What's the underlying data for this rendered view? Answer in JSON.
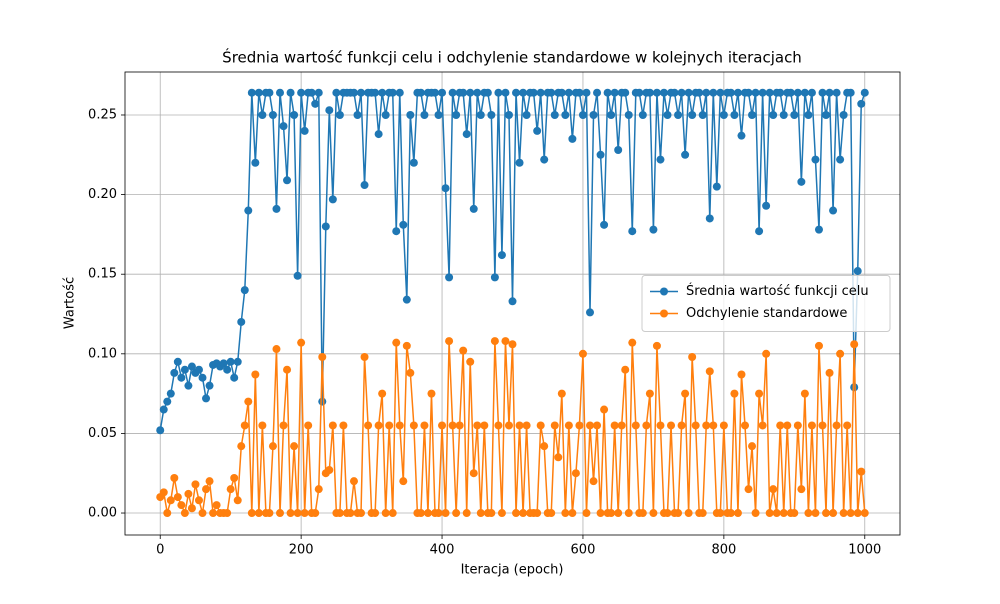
{
  "chart_data": {
    "type": "line",
    "title": "Średnia wartość funkcji celu i odchylenie standardowe w kolejnych iteracjach",
    "xlabel": "Iteracja (epoch)",
    "ylabel": "Wartość",
    "xlim": [
      -50,
      1050
    ],
    "ylim": [
      -0.0138,
      0.277
    ],
    "xticks": [
      0,
      200,
      400,
      600,
      800,
      1000
    ],
    "yticks": [
      {
        "value": 0,
        "label": "0.00"
      },
      {
        "value": 0.05,
        "label": "0.05"
      },
      {
        "value": 0.1,
        "label": "0.10"
      },
      {
        "value": 0.15,
        "label": "0.15"
      },
      {
        "value": 0.2,
        "label": "0.20"
      },
      {
        "value": 0.25,
        "label": "0.25"
      }
    ],
    "grid": true,
    "legend": "center right",
    "x": [
      0,
      5,
      10,
      15,
      20,
      25,
      30,
      35,
      40,
      45,
      50,
      55,
      60,
      65,
      70,
      75,
      80,
      85,
      90,
      95,
      100,
      105,
      110,
      115,
      120,
      125,
      130,
      135,
      140,
      145,
      150,
      155,
      160,
      165,
      170,
      175,
      180,
      185,
      190,
      195,
      200,
      205,
      210,
      215,
      220,
      225,
      230,
      235,
      240,
      245,
      250,
      255,
      260,
      265,
      270,
      275,
      280,
      285,
      290,
      295,
      300,
      305,
      310,
      315,
      320,
      325,
      330,
      335,
      340,
      345,
      350,
      355,
      360,
      365,
      370,
      375,
      380,
      385,
      390,
      395,
      400,
      405,
      410,
      415,
      420,
      425,
      430,
      435,
      440,
      445,
      450,
      455,
      460,
      465,
      470,
      475,
      480,
      485,
      490,
      495,
      500,
      505,
      510,
      515,
      520,
      525,
      530,
      535,
      540,
      545,
      550,
      555,
      560,
      565,
      570,
      575,
      580,
      585,
      590,
      595,
      600,
      605,
      610,
      615,
      620,
      625,
      630,
      635,
      640,
      645,
      650,
      655,
      660,
      665,
      670,
      675,
      680,
      685,
      690,
      695,
      700,
      705,
      710,
      715,
      720,
      725,
      730,
      735,
      740,
      745,
      750,
      755,
      760,
      765,
      770,
      775,
      780,
      785,
      790,
      795,
      800,
      805,
      810,
      815,
      820,
      825,
      830,
      835,
      840,
      845,
      850,
      855,
      860,
      865,
      870,
      875,
      880,
      885,
      890,
      895,
      900,
      905,
      910,
      915,
      920,
      925,
      930,
      935,
      940,
      945,
      950,
      955,
      960,
      965,
      970,
      975,
      980,
      985,
      990,
      995,
      1000
    ],
    "series": [
      {
        "name": "Średnia wartość funkcji celu",
        "color": "#1f77b4",
        "values": [
          0.052,
          0.065,
          0.07,
          0.075,
          0.088,
          0.095,
          0.085,
          0.09,
          0.08,
          0.092,
          0.088,
          0.09,
          0.085,
          0.072,
          0.08,
          0.093,
          0.094,
          0.092,
          0.094,
          0.09,
          0.095,
          0.085,
          0.095,
          0.12,
          0.14,
          0.19,
          0.264,
          0.22,
          0.264,
          0.25,
          0.264,
          0.264,
          0.25,
          0.191,
          0.264,
          0.243,
          0.209,
          0.264,
          0.25,
          0.149,
          0.264,
          0.24,
          0.264,
          0.264,
          0.257,
          0.264,
          0.07,
          0.18,
          0.253,
          0.197,
          0.264,
          0.25,
          0.264,
          0.264,
          0.264,
          0.264,
          0.25,
          0.264,
          0.206,
          0.264,
          0.264,
          0.264,
          0.238,
          0.264,
          0.25,
          0.264,
          0.264,
          0.177,
          0.264,
          0.181,
          0.134,
          0.25,
          0.22,
          0.264,
          0.264,
          0.25,
          0.264,
          0.264,
          0.264,
          0.25,
          0.264,
          0.204,
          0.148,
          0.264,
          0.25,
          0.264,
          0.264,
          0.238,
          0.264,
          0.191,
          0.264,
          0.25,
          0.264,
          0.264,
          0.25,
          0.148,
          0.264,
          0.162,
          0.264,
          0.25,
          0.133,
          0.264,
          0.22,
          0.264,
          0.25,
          0.264,
          0.264,
          0.24,
          0.264,
          0.222,
          0.264,
          0.264,
          0.25,
          0.264,
          0.264,
          0.25,
          0.264,
          0.235,
          0.264,
          0.264,
          0.25,
          0.264,
          0.126,
          0.25,
          0.264,
          0.225,
          0.181,
          0.264,
          0.25,
          0.264,
          0.228,
          0.264,
          0.264,
          0.25,
          0.177,
          0.264,
          0.264,
          0.25,
          0.264,
          0.264,
          0.178,
          0.264,
          0.222,
          0.264,
          0.25,
          0.264,
          0.264,
          0.25,
          0.264,
          0.225,
          0.264,
          0.25,
          0.264,
          0.264,
          0.25,
          0.264,
          0.185,
          0.264,
          0.205,
          0.264,
          0.25,
          0.264,
          0.264,
          0.25,
          0.264,
          0.237,
          0.264,
          0.264,
          0.25,
          0.264,
          0.177,
          0.264,
          0.193,
          0.264,
          0.25,
          0.264,
          0.264,
          0.25,
          0.264,
          0.264,
          0.25,
          0.264,
          0.208,
          0.264,
          0.25,
          0.264,
          0.222,
          0.178,
          0.264,
          0.25,
          0.264,
          0.19,
          0.264,
          0.222,
          0.25,
          0.264,
          0.264,
          0.079,
          0.152,
          0.257,
          0.264
        ]
      },
      {
        "name": "Odchylenie standardowe",
        "color": "#ff7f0e",
        "values": [
          0.01,
          0.013,
          0.0,
          0.008,
          0.022,
          0.01,
          0.005,
          0.0,
          0.012,
          0.003,
          0.018,
          0.008,
          0.0,
          0.015,
          0.02,
          0.0,
          0.005,
          0.0,
          0.0,
          0.0,
          0.015,
          0.022,
          0.008,
          0.042,
          0.055,
          0.07,
          0.0,
          0.087,
          0.0,
          0.055,
          0.0,
          0.0,
          0.042,
          0.103,
          0.0,
          0.055,
          0.09,
          0.0,
          0.042,
          0.0,
          0.107,
          0.0,
          0.055,
          0.0,
          0.0,
          0.015,
          0.098,
          0.025,
          0.027,
          0.055,
          0.0,
          0.0,
          0.055,
          0.0,
          0.0,
          0.02,
          0.0,
          0.0,
          0.098,
          0.055,
          0.0,
          0.0,
          0.055,
          0.075,
          0.0,
          0.055,
          0.0,
          0.107,
          0.055,
          0.02,
          0.105,
          0.088,
          0.055,
          0.0,
          0.0,
          0.055,
          0.0,
          0.075,
          0.0,
          0.0,
          0.055,
          0.0,
          0.108,
          0.055,
          0.0,
          0.055,
          0.102,
          0.0,
          0.095,
          0.025,
          0.055,
          0.0,
          0.055,
          0.0,
          0.0,
          0.108,
          0.055,
          0.0,
          0.108,
          0.055,
          0.106,
          0.0,
          0.055,
          0.0,
          0.055,
          0.0,
          0.0,
          0.0,
          0.055,
          0.042,
          0.0,
          0.0,
          0.055,
          0.035,
          0.075,
          0.0,
          0.055,
          0.0,
          0.025,
          0.055,
          0.1,
          0.0,
          0.055,
          0.02,
          0.055,
          0.0,
          0.065,
          0.0,
          0.0,
          0.055,
          0.0,
          0.055,
          0.09,
          0.0,
          0.107,
          0.055,
          0.0,
          0.0,
          0.055,
          0.075,
          0.0,
          0.105,
          0.055,
          0.0,
          0.0,
          0.055,
          0.0,
          0.0,
          0.055,
          0.075,
          0.0,
          0.098,
          0.055,
          0.0,
          0.0,
          0.055,
          0.089,
          0.055,
          0.0,
          0.0,
          0.055,
          0.0,
          0.0,
          0.075,
          0.0,
          0.087,
          0.055,
          0.015,
          0.042,
          0.0,
          0.075,
          0.055,
          0.1,
          0.0,
          0.015,
          0.0,
          0.055,
          0.0,
          0.055,
          0.0,
          0.0,
          0.055,
          0.015,
          0.075,
          0.0,
          0.055,
          0.0,
          0.105,
          0.055,
          0.0,
          0.088,
          0.0,
          0.055,
          0.1,
          0.0,
          0.055,
          0.0,
          0.106,
          0.0,
          0.026,
          0.0
        ]
      }
    ]
  }
}
